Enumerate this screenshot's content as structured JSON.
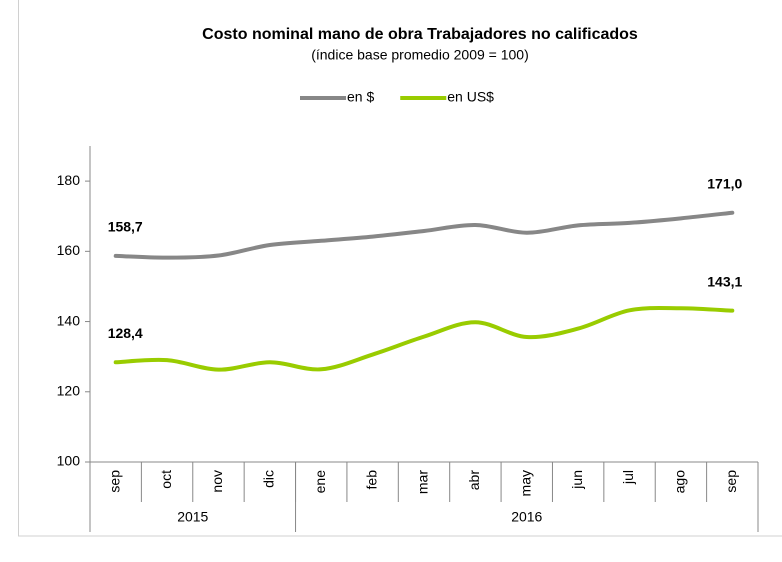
{
  "chart_data": {
    "type": "line",
    "title": "Costo nominal mano de obra Trabajadores no calificados",
    "subtitle": "(índice base promedio 2009 = 100)",
    "categories": [
      "sep",
      "oct",
      "nov",
      "dic",
      "ene",
      "feb",
      "mar",
      "abr",
      "may",
      "jun",
      "jul",
      "ago",
      "sep"
    ],
    "year_groups": [
      {
        "label": "2015",
        "span": 4
      },
      {
        "label": "2016",
        "span": 9
      }
    ],
    "series": [
      {
        "name": "en $",
        "color": "#878787",
        "values": [
          158.7,
          158.2,
          158.8,
          161.8,
          163.0,
          164.2,
          165.8,
          167.5,
          165.3,
          167.4,
          168.1,
          169.4,
          171.0
        ],
        "value_labels": [
          "158,7",
          null,
          null,
          null,
          null,
          null,
          null,
          null,
          null,
          null,
          null,
          null,
          "171,0"
        ]
      },
      {
        "name": "en US$",
        "color": "#99cc00",
        "values": [
          128.4,
          129.0,
          126.3,
          128.4,
          126.4,
          130.6,
          135.7,
          139.8,
          135.6,
          138.0,
          143.2,
          143.8,
          143.1
        ],
        "value_labels": [
          "128,4",
          null,
          null,
          null,
          null,
          null,
          null,
          null,
          null,
          null,
          null,
          null,
          "143,1"
        ]
      }
    ],
    "ylim": [
      100,
      190
    ],
    "yticks": [
      100,
      120,
      140,
      160,
      180
    ],
    "legend": "top"
  }
}
